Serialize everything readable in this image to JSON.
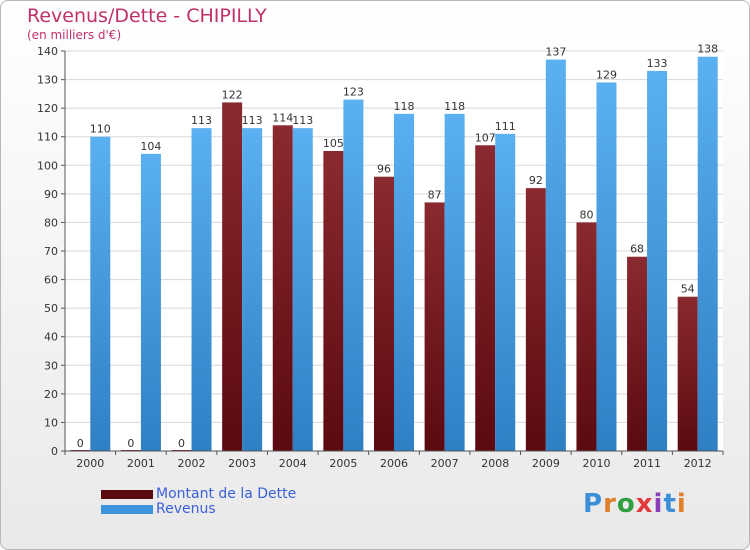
{
  "title": "Revenus/Dette - CHIPILLY",
  "subtitle": "(en milliers d'€)",
  "logo": "Proxiti",
  "colors": {
    "title": "#c0306a",
    "dette": "#7a1c22",
    "revenus": "#4aa3e8",
    "legend_text": "#3b5fd6"
  },
  "chart_data": {
    "type": "bar",
    "title": "Revenus/Dette - CHIPILLY",
    "subtitle": "(en milliers d'€)",
    "categories": [
      "2000",
      "2001",
      "2002",
      "2003",
      "2004",
      "2005",
      "2006",
      "2007",
      "2008",
      "2009",
      "2010",
      "2011",
      "2012"
    ],
    "series": [
      {
        "name": "Montant de la Dette",
        "color": "#7a1c22",
        "values": [
          0,
          0,
          0,
          122,
          114,
          105,
          96,
          87,
          107,
          92,
          80,
          68,
          54
        ]
      },
      {
        "name": "Revenus",
        "color": "#4aa3e8",
        "values": [
          110,
          104,
          113,
          113,
          113,
          123,
          118,
          118,
          111,
          137,
          129,
          133,
          138
        ]
      }
    ],
    "ylim": [
      0,
      140
    ],
    "yticks": [
      0,
      10,
      20,
      30,
      40,
      50,
      60,
      70,
      80,
      90,
      100,
      110,
      120,
      130,
      140
    ],
    "grid": true,
    "legend_position": "bottom-left"
  }
}
